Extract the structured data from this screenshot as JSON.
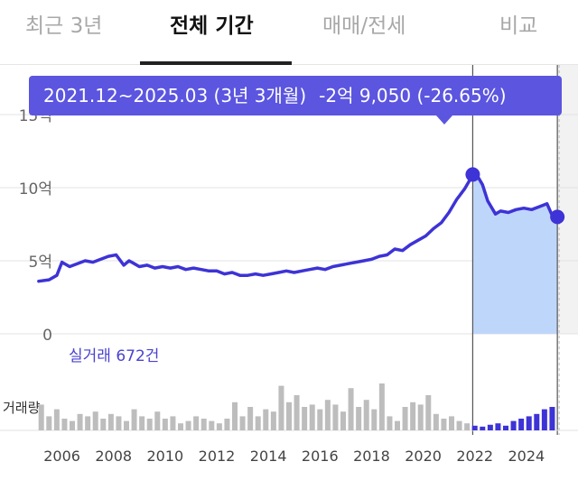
{
  "tabs": [
    {
      "label": "최근 3년",
      "active": false
    },
    {
      "label": "전체 기간",
      "active": true
    },
    {
      "label": "매매/전세",
      "active": false
    },
    {
      "label": "비교",
      "active": false
    }
  ],
  "tooltip": {
    "period": "2021.12~2025.03 (3년 3개월)",
    "change": "-2억 9,050 (-26.65%)"
  },
  "trade_count_label": "실거래 672건",
  "volume_label": "거래량",
  "colors": {
    "line": "#3d33d6",
    "highlight_fill": "#bcd4fb",
    "tooltip_bg": "#5b55e0",
    "volume_bar": "#bdbdbd",
    "volume_bar_highlight": "#3d33d6",
    "future_fill": "#f2f2f2"
  },
  "chart_data": {
    "type": "line",
    "y_ticks": [
      {
        "value": 0,
        "label": "0"
      },
      {
        "value": 5,
        "label": "5억"
      },
      {
        "value": 10,
        "label": "10억"
      },
      {
        "value": 15,
        "label": "15억"
      }
    ],
    "x_ticks": [
      "2006",
      "2008",
      "2010",
      "2012",
      "2014",
      "2016",
      "2018",
      "2020",
      "2022",
      "2024"
    ],
    "ylim": [
      0,
      15
    ],
    "xlim": [
      2005.0,
      2026.0
    ],
    "grid": true,
    "highlight_range": [
      2021.92,
      2025.2
    ],
    "future_start": 2025.2,
    "start_marker": {
      "x": 2021.92,
      "y": 10.9
    },
    "end_marker": {
      "x": 2025.2,
      "y": 8.0
    },
    "series": [
      {
        "x": [
          2005.1,
          2005.5,
          2005.8,
          2006.0,
          2006.3,
          2006.6,
          2006.9,
          2007.2,
          2007.5,
          2007.8,
          2008.1,
          2008.4,
          2008.6,
          2008.8,
          2009.0,
          2009.3,
          2009.6,
          2009.9,
          2010.2,
          2010.5,
          2010.8,
          2011.1,
          2011.4,
          2011.7,
          2012.0,
          2012.3,
          2012.6,
          2012.9,
          2013.2,
          2013.5,
          2013.8,
          2014.1,
          2014.4,
          2014.7,
          2015.0,
          2015.3,
          2015.6,
          2015.9,
          2016.2,
          2016.5,
          2016.8,
          2017.1,
          2017.4,
          2017.7,
          2018.0,
          2018.3,
          2018.6,
          2018.9,
          2019.2,
          2019.5,
          2019.8,
          2020.1,
          2020.4,
          2020.7,
          2021.0,
          2021.3,
          2021.6,
          2021.8,
          2021.92,
          2022.1,
          2022.3,
          2022.5,
          2022.8,
          2023.0,
          2023.3,
          2023.6,
          2023.9,
          2024.2,
          2024.5,
          2024.8,
          2025.0,
          2025.2
        ],
        "y": [
          3.6,
          3.7,
          4.0,
          4.9,
          4.6,
          4.8,
          5.0,
          4.9,
          5.1,
          5.3,
          5.4,
          4.7,
          5.0,
          4.8,
          4.6,
          4.7,
          4.5,
          4.6,
          4.5,
          4.6,
          4.4,
          4.5,
          4.4,
          4.3,
          4.3,
          4.1,
          4.2,
          4.0,
          4.0,
          4.1,
          4.0,
          4.1,
          4.2,
          4.3,
          4.2,
          4.3,
          4.4,
          4.5,
          4.4,
          4.6,
          4.7,
          4.8,
          4.9,
          5.0,
          5.1,
          5.3,
          5.4,
          5.8,
          5.7,
          6.1,
          6.4,
          6.7,
          7.2,
          7.6,
          8.3,
          9.2,
          9.9,
          10.5,
          10.9,
          10.8,
          10.2,
          9.1,
          8.2,
          8.4,
          8.3,
          8.5,
          8.6,
          8.5,
          8.7,
          8.9,
          8.1,
          8.0
        ]
      }
    ],
    "volume": [
      {
        "x": 2005.2,
        "v": 0.55
      },
      {
        "x": 2005.5,
        "v": 0.3
      },
      {
        "x": 2005.8,
        "v": 0.45
      },
      {
        "x": 2006.1,
        "v": 0.25
      },
      {
        "x": 2006.4,
        "v": 0.2
      },
      {
        "x": 2006.7,
        "v": 0.35
      },
      {
        "x": 2007.0,
        "v": 0.3
      },
      {
        "x": 2007.3,
        "v": 0.4
      },
      {
        "x": 2007.6,
        "v": 0.25
      },
      {
        "x": 2007.9,
        "v": 0.35
      },
      {
        "x": 2008.2,
        "v": 0.3
      },
      {
        "x": 2008.5,
        "v": 0.2
      },
      {
        "x": 2008.8,
        "v": 0.45
      },
      {
        "x": 2009.1,
        "v": 0.3
      },
      {
        "x": 2009.4,
        "v": 0.25
      },
      {
        "x": 2009.7,
        "v": 0.4
      },
      {
        "x": 2010.0,
        "v": 0.25
      },
      {
        "x": 2010.3,
        "v": 0.3
      },
      {
        "x": 2010.6,
        "v": 0.15
      },
      {
        "x": 2010.9,
        "v": 0.2
      },
      {
        "x": 2011.2,
        "v": 0.3
      },
      {
        "x": 2011.5,
        "v": 0.25
      },
      {
        "x": 2011.8,
        "v": 0.2
      },
      {
        "x": 2012.1,
        "v": 0.15
      },
      {
        "x": 2012.4,
        "v": 0.25
      },
      {
        "x": 2012.7,
        "v": 0.6
      },
      {
        "x": 2013.0,
        "v": 0.3
      },
      {
        "x": 2013.3,
        "v": 0.5
      },
      {
        "x": 2013.6,
        "v": 0.3
      },
      {
        "x": 2013.9,
        "v": 0.45
      },
      {
        "x": 2014.2,
        "v": 0.4
      },
      {
        "x": 2014.5,
        "v": 0.95
      },
      {
        "x": 2014.8,
        "v": 0.6
      },
      {
        "x": 2015.1,
        "v": 0.75
      },
      {
        "x": 2015.4,
        "v": 0.5
      },
      {
        "x": 2015.7,
        "v": 0.55
      },
      {
        "x": 2016.0,
        "v": 0.45
      },
      {
        "x": 2016.3,
        "v": 0.65
      },
      {
        "x": 2016.6,
        "v": 0.55
      },
      {
        "x": 2016.9,
        "v": 0.4
      },
      {
        "x": 2017.2,
        "v": 0.9
      },
      {
        "x": 2017.5,
        "v": 0.5
      },
      {
        "x": 2017.8,
        "v": 0.65
      },
      {
        "x": 2018.1,
        "v": 0.45
      },
      {
        "x": 2018.4,
        "v": 1.0
      },
      {
        "x": 2018.7,
        "v": 0.3
      },
      {
        "x": 2019.0,
        "v": 0.2
      },
      {
        "x": 2019.3,
        "v": 0.5
      },
      {
        "x": 2019.6,
        "v": 0.6
      },
      {
        "x": 2019.9,
        "v": 0.55
      },
      {
        "x": 2020.2,
        "v": 0.75
      },
      {
        "x": 2020.5,
        "v": 0.35
      },
      {
        "x": 2020.8,
        "v": 0.25
      },
      {
        "x": 2021.1,
        "v": 0.3
      },
      {
        "x": 2021.4,
        "v": 0.2
      },
      {
        "x": 2021.7,
        "v": 0.15
      },
      {
        "x": 2022.0,
        "v": 0.1
      },
      {
        "x": 2022.3,
        "v": 0.08
      },
      {
        "x": 2022.6,
        "v": 0.12
      },
      {
        "x": 2022.9,
        "v": 0.15
      },
      {
        "x": 2023.2,
        "v": 0.1
      },
      {
        "x": 2023.5,
        "v": 0.2
      },
      {
        "x": 2023.8,
        "v": 0.25
      },
      {
        "x": 2024.1,
        "v": 0.3
      },
      {
        "x": 2024.4,
        "v": 0.35
      },
      {
        "x": 2024.7,
        "v": 0.45
      },
      {
        "x": 2025.0,
        "v": 0.5
      }
    ]
  }
}
